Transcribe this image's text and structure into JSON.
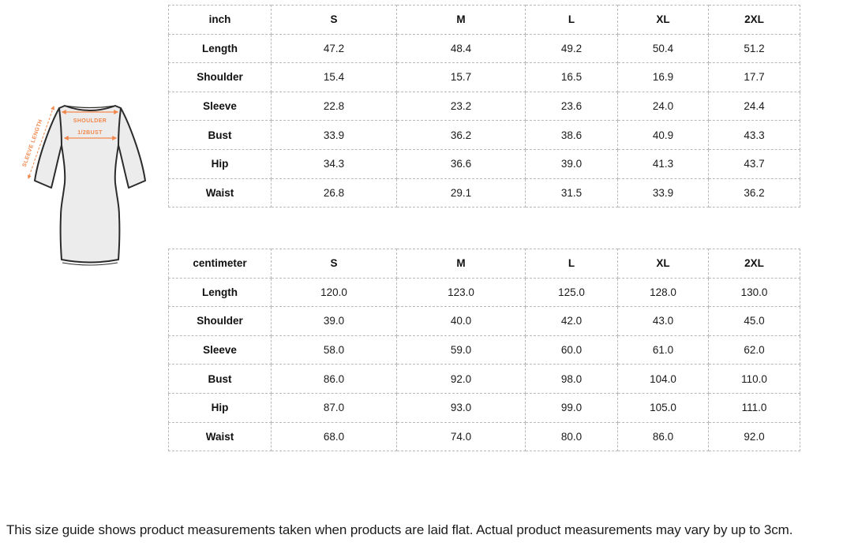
{
  "colors": {
    "accent_orange": "#F2874B",
    "dress_fill": "#ECECEC",
    "dress_outline": "#2B2B2B",
    "table_border": "#B9B9B9"
  },
  "diagram": {
    "labels": {
      "shoulder": "SHOULDER",
      "half_bust": "1/2BUST",
      "sleeve_length": "SLEEVE LENGTH"
    }
  },
  "tables": [
    {
      "unit_header": "inch",
      "size_headers": [
        "S",
        "M",
        "L",
        "XL",
        "2XL"
      ],
      "rows": [
        {
          "label": "Length",
          "values": [
            "47.2",
            "48.4",
            "49.2",
            "50.4",
            "51.2"
          ]
        },
        {
          "label": "Shoulder",
          "values": [
            "15.4",
            "15.7",
            "16.5",
            "16.9",
            "17.7"
          ]
        },
        {
          "label": "Sleeve",
          "values": [
            "22.8",
            "23.2",
            "23.6",
            "24.0",
            "24.4"
          ]
        },
        {
          "label": "Bust",
          "values": [
            "33.9",
            "36.2",
            "38.6",
            "40.9",
            "43.3"
          ]
        },
        {
          "label": "Hip",
          "values": [
            "34.3",
            "36.6",
            "39.0",
            "41.3",
            "43.7"
          ]
        },
        {
          "label": "Waist",
          "values": [
            "26.8",
            "29.1",
            "31.5",
            "33.9",
            "36.2"
          ]
        }
      ]
    },
    {
      "unit_header": "centimeter",
      "size_headers": [
        "S",
        "M",
        "L",
        "XL",
        "2XL"
      ],
      "rows": [
        {
          "label": "Length",
          "values": [
            "120.0",
            "123.0",
            "125.0",
            "128.0",
            "130.0"
          ]
        },
        {
          "label": "Shoulder",
          "values": [
            "39.0",
            "40.0",
            "42.0",
            "43.0",
            "45.0"
          ]
        },
        {
          "label": "Sleeve",
          "values": [
            "58.0",
            "59.0",
            "60.0",
            "61.0",
            "62.0"
          ]
        },
        {
          "label": "Bust",
          "values": [
            "86.0",
            "92.0",
            "98.0",
            "104.0",
            "110.0"
          ]
        },
        {
          "label": "Hip",
          "values": [
            "87.0",
            "93.0",
            "99.0",
            "105.0",
            "111.0"
          ]
        },
        {
          "label": "Waist",
          "values": [
            "68.0",
            "74.0",
            "80.0",
            "86.0",
            "92.0"
          ]
        }
      ]
    }
  ],
  "footer": {
    "note": "This size guide shows product measurements taken when products are laid flat. Actual product measurements may vary by up to 3cm."
  }
}
